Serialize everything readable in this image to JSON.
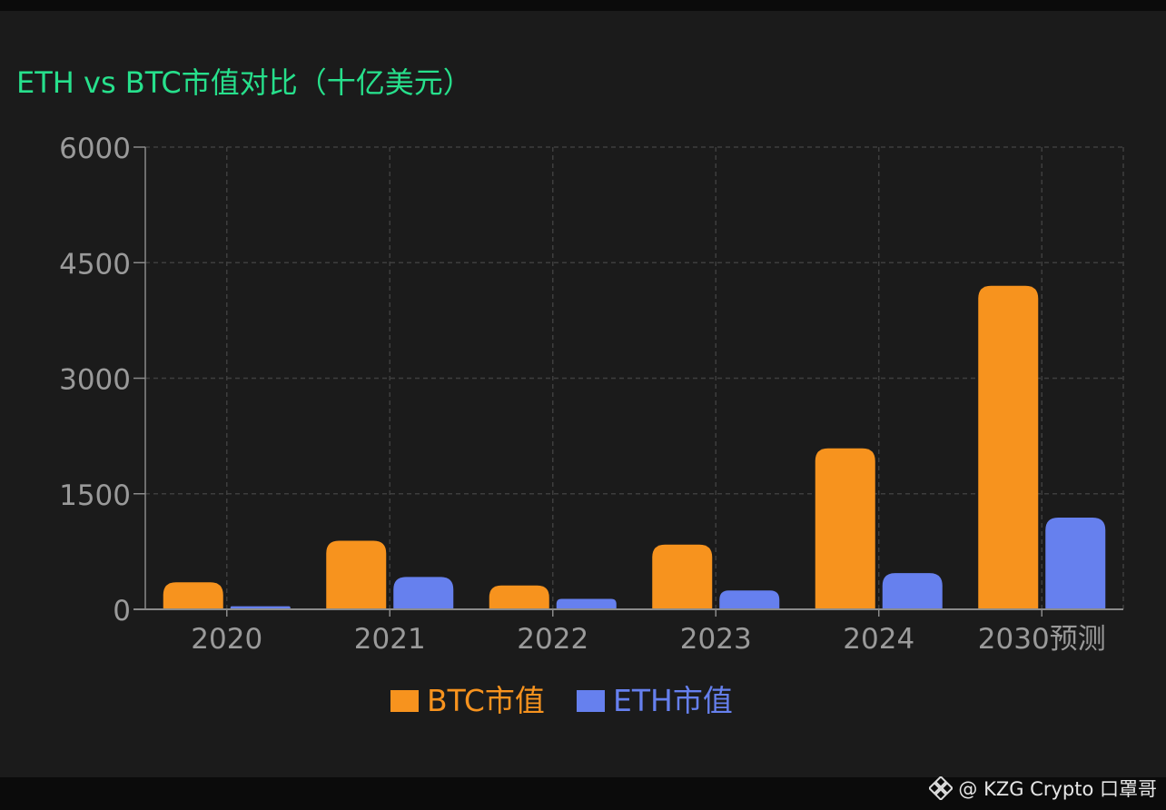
{
  "colors": {
    "btc": "#f7931e",
    "eth": "#6680ee",
    "title": "#27e08c",
    "axis_text": "#9a9a9a",
    "grid": "#3e3e3e",
    "axis_line": "#8a8a8a"
  },
  "chart_data": {
    "type": "bar",
    "title": "ETH vs BTC市值对比（十亿美元）",
    "xlabel": "",
    "ylabel": "",
    "categories": [
      "2020",
      "2021",
      "2022",
      "2023",
      "2024",
      "2030预测"
    ],
    "series": [
      {
        "name": "BTC市值",
        "values": [
          350,
          890,
          310,
          840,
          2090,
          4200
        ]
      },
      {
        "name": "ETH市值",
        "values": [
          40,
          420,
          135,
          245,
          470,
          1190
        ]
      }
    ],
    "ylim": [
      0,
      6000
    ],
    "yticks": [
      0,
      1500,
      3000,
      4500,
      6000
    ],
    "grid": true,
    "legend_position": "bottom-center"
  },
  "watermark": {
    "icon": "binance-logo-icon",
    "text": "@ KZG Crypto 口罩哥"
  }
}
